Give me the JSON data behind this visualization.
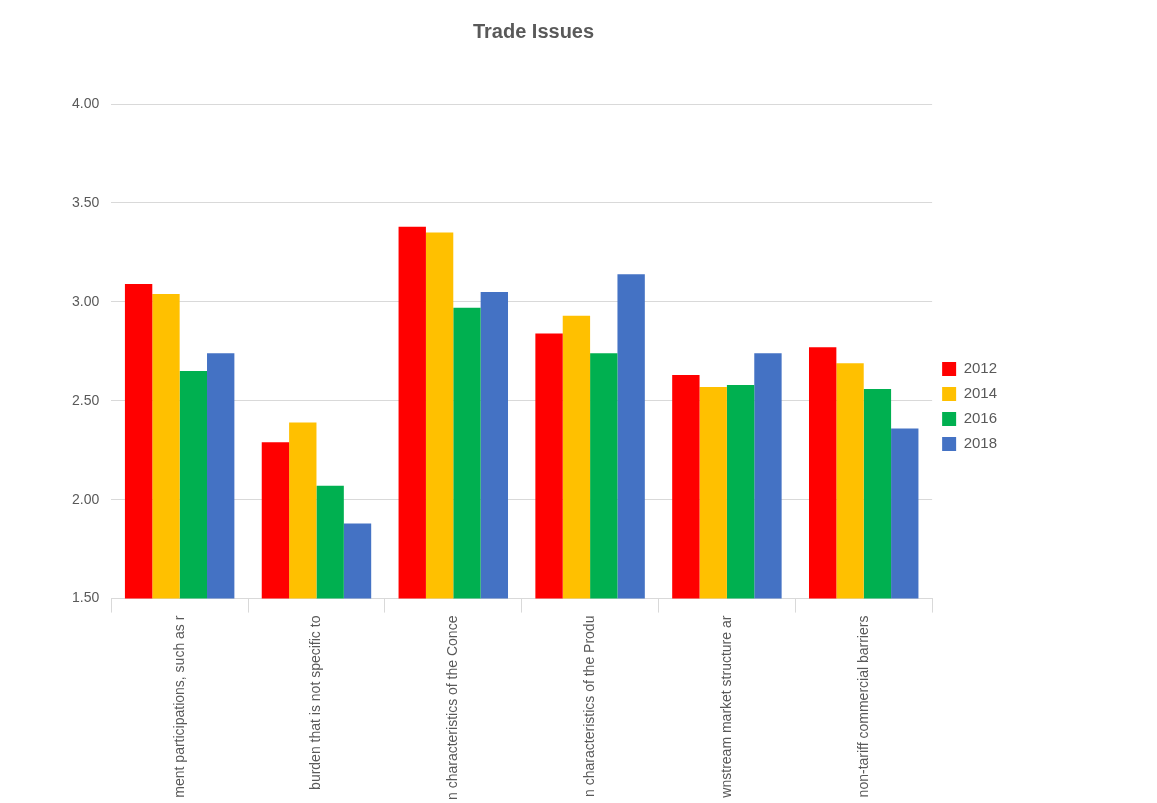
{
  "chart_data": {
    "type": "bar",
    "title": "Trade Issues",
    "categories": [
      "ment participations, such as r",
      "burden that is not specific to",
      "n characteristics of the Conce",
      "n characteristics of the Produ",
      "wnstream market structure ar",
      "non-tariff commercial barriers"
    ],
    "series": [
      {
        "name": "2012",
        "color": "#ff0000",
        "values": [
          3.09,
          2.29,
          3.38,
          2.84,
          2.63,
          2.77
        ]
      },
      {
        "name": "2014",
        "color": "#ffc000",
        "values": [
          3.04,
          2.39,
          3.35,
          2.93,
          2.57,
          2.69
        ]
      },
      {
        "name": "2016",
        "color": "#00b050",
        "values": [
          2.65,
          2.07,
          2.97,
          2.74,
          2.58,
          2.56
        ]
      },
      {
        "name": "2018",
        "color": "#4472c4",
        "values": [
          2.74,
          1.88,
          3.05,
          3.14,
          2.74,
          2.36
        ]
      }
    ],
    "ylim": [
      1.5,
      4
    ],
    "yticks": [
      {
        "value": 1.5,
        "label": "1.50"
      },
      {
        "value": 2,
        "label": "2.00"
      },
      {
        "value": 2.5,
        "label": "2.50"
      },
      {
        "value": 3,
        "label": "3.00"
      },
      {
        "value": 3.5,
        "label": "3.50"
      },
      {
        "value": 4,
        "label": "4.00"
      }
    ],
    "grid": "y",
    "legend": "right"
  }
}
